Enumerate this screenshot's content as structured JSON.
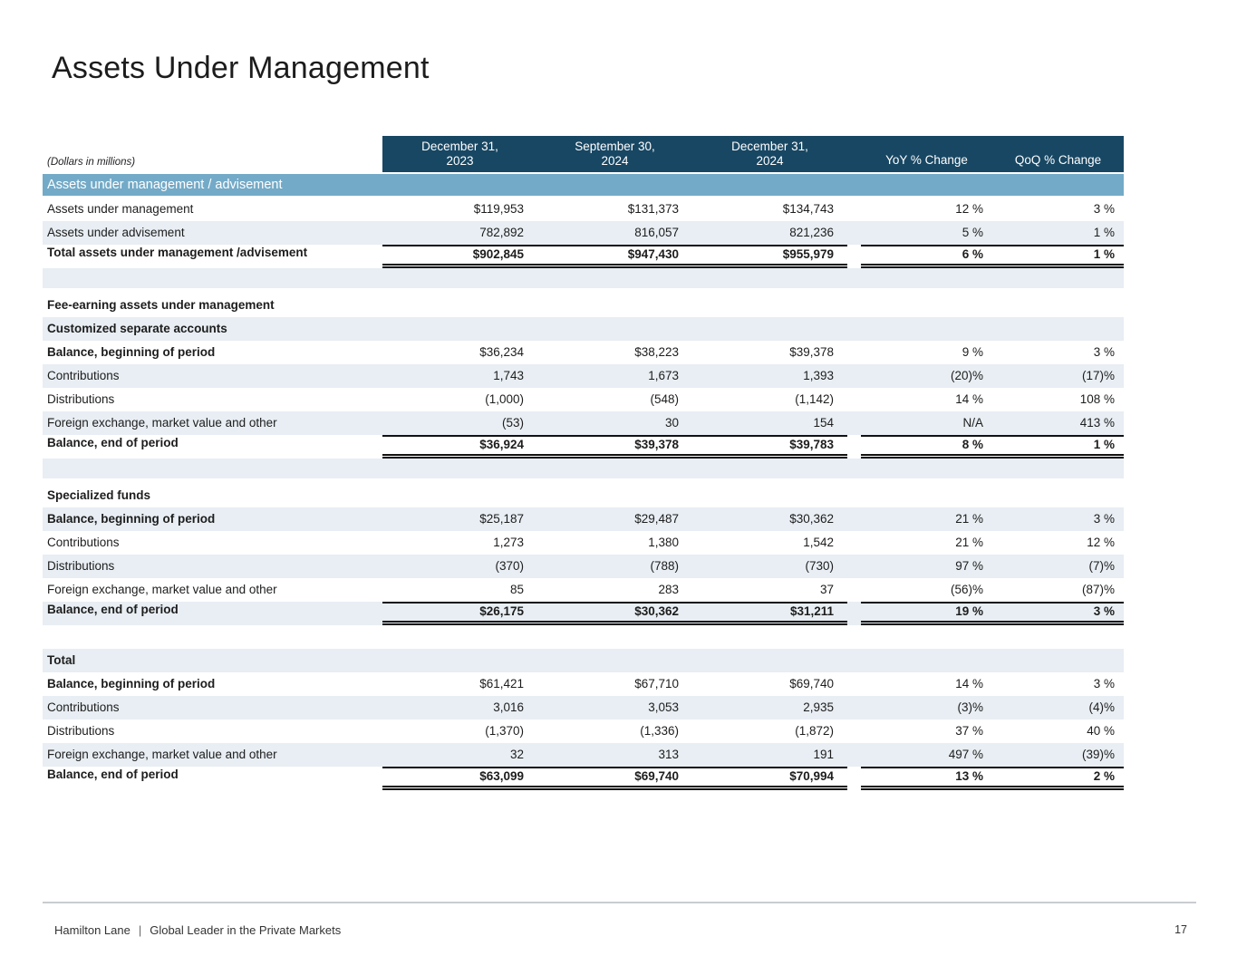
{
  "slide": {
    "title": "Assets Under Management",
    "page_number": "17",
    "footer": {
      "brand": "Hamilton Lane",
      "separator": "|",
      "tagline": "Global Leader in the Private Markets"
    }
  },
  "colors": {
    "header_bg": "#184763",
    "section_bar_bg": "#73aac7",
    "stripe_bg": "#e8eef3",
    "rule": "#111111"
  },
  "table": {
    "units_note": "(Dollars in millions)",
    "section_bar_label": "Assets under management / advisement",
    "column_headers": [
      {
        "line1": "December 31,",
        "line2": "2023"
      },
      {
        "line1": "September 30,",
        "line2": "2024"
      },
      {
        "line1": "December 31,",
        "line2": "2024"
      },
      {
        "line1": "YoY % Change",
        "line2": ""
      },
      {
        "line1": "QoQ % Change",
        "line2": ""
      }
    ],
    "rows": [
      {
        "type": "data",
        "bg": "white",
        "label": "Assets under management",
        "values": [
          "$119,953",
          "$131,373",
          "$134,743",
          "12 %",
          "3 %"
        ]
      },
      {
        "type": "data",
        "bg": "light",
        "label": "Assets under advisement",
        "values": [
          "782,892",
          "816,057",
          "821,236",
          "5 %",
          "1 %"
        ]
      },
      {
        "type": "data",
        "bg": "white",
        "bold_label": true,
        "bold_values": true,
        "lined": true,
        "label": "Total assets under management /advisement",
        "values": [
          "$902,845",
          "$947,430",
          "$955,979",
          "6 %",
          "1 %"
        ]
      },
      {
        "type": "spacer",
        "bg": "light"
      },
      {
        "type": "gap",
        "bg": "white"
      },
      {
        "type": "heading",
        "bg": "white",
        "label": "Fee-earning assets under management"
      },
      {
        "type": "heading",
        "bg": "light",
        "label": "Customized separate accounts"
      },
      {
        "type": "data",
        "bg": "white",
        "bold_label": true,
        "label": "Balance, beginning of period",
        "values": [
          "$36,234",
          "$38,223",
          "$39,378",
          "9 %",
          "3 %"
        ]
      },
      {
        "type": "data",
        "bg": "light",
        "label": "Contributions",
        "values": [
          "1,743",
          "1,673",
          "1,393",
          "(20)%",
          "(17)%"
        ]
      },
      {
        "type": "data",
        "bg": "white",
        "label": "Distributions",
        "values": [
          "(1,000)",
          "(548)",
          "(1,142)",
          "14 %",
          "108 %"
        ]
      },
      {
        "type": "data",
        "bg": "light",
        "label": "Foreign exchange, market value and other",
        "values": [
          "(53)",
          "30",
          "154",
          "N/A",
          "413 %"
        ]
      },
      {
        "type": "data",
        "bg": "white",
        "bold_label": true,
        "bold_values": true,
        "lined": true,
        "label": "Balance, end of period",
        "values": [
          "$36,924",
          "$39,378",
          "$39,783",
          "8 %",
          "1 %"
        ]
      },
      {
        "type": "spacer",
        "bg": "light"
      },
      {
        "type": "gap",
        "bg": "white"
      },
      {
        "type": "heading",
        "bg": "white",
        "label": "Specialized funds"
      },
      {
        "type": "data",
        "bg": "light",
        "bold_label": true,
        "label": "Balance, beginning of period",
        "values": [
          "$25,187",
          "$29,487",
          "$30,362",
          "21 %",
          "3 %"
        ]
      },
      {
        "type": "data",
        "bg": "white",
        "label": "Contributions",
        "values": [
          "1,273",
          "1,380",
          "1,542",
          "21 %",
          "12 %"
        ]
      },
      {
        "type": "data",
        "bg": "light",
        "label": "Distributions",
        "values": [
          "(370)",
          "(788)",
          "(730)",
          "97 %",
          "(7)%"
        ]
      },
      {
        "type": "data",
        "bg": "white",
        "label": "Foreign exchange, market value and other",
        "values": [
          "85",
          "283",
          "37",
          "(56)%",
          "(87)%"
        ]
      },
      {
        "type": "data",
        "bg": "light",
        "bold_label": true,
        "bold_values": true,
        "lined": true,
        "label": "Balance, end of period",
        "values": [
          "$26,175",
          "$30,362",
          "$31,211",
          "19 %",
          "3 %"
        ]
      },
      {
        "type": "gap",
        "bg": "white",
        "height": 26
      },
      {
        "type": "heading",
        "bg": "light",
        "label": "Total"
      },
      {
        "type": "data",
        "bg": "white",
        "bold_label": true,
        "label": "Balance, beginning of period",
        "values": [
          "$61,421",
          "$67,710",
          "$69,740",
          "14 %",
          "3 %"
        ]
      },
      {
        "type": "data",
        "bg": "light",
        "label": "Contributions",
        "values": [
          "3,016",
          "3,053",
          "2,935",
          "(3)%",
          "(4)%"
        ]
      },
      {
        "type": "data",
        "bg": "white",
        "label": "Distributions",
        "values": [
          "(1,370)",
          "(1,336)",
          "(1,872)",
          "37 %",
          "40 %"
        ]
      },
      {
        "type": "data",
        "bg": "light",
        "label": "Foreign exchange, market value and other",
        "values": [
          "32",
          "313",
          "191",
          "497 %",
          "(39)%"
        ]
      },
      {
        "type": "data",
        "bg": "white",
        "bold_label": true,
        "bold_values": true,
        "lined": true,
        "label": "Balance, end of period",
        "values": [
          "$63,099",
          "$69,740",
          "$70,994",
          "13 %",
          "2 %"
        ]
      }
    ]
  }
}
